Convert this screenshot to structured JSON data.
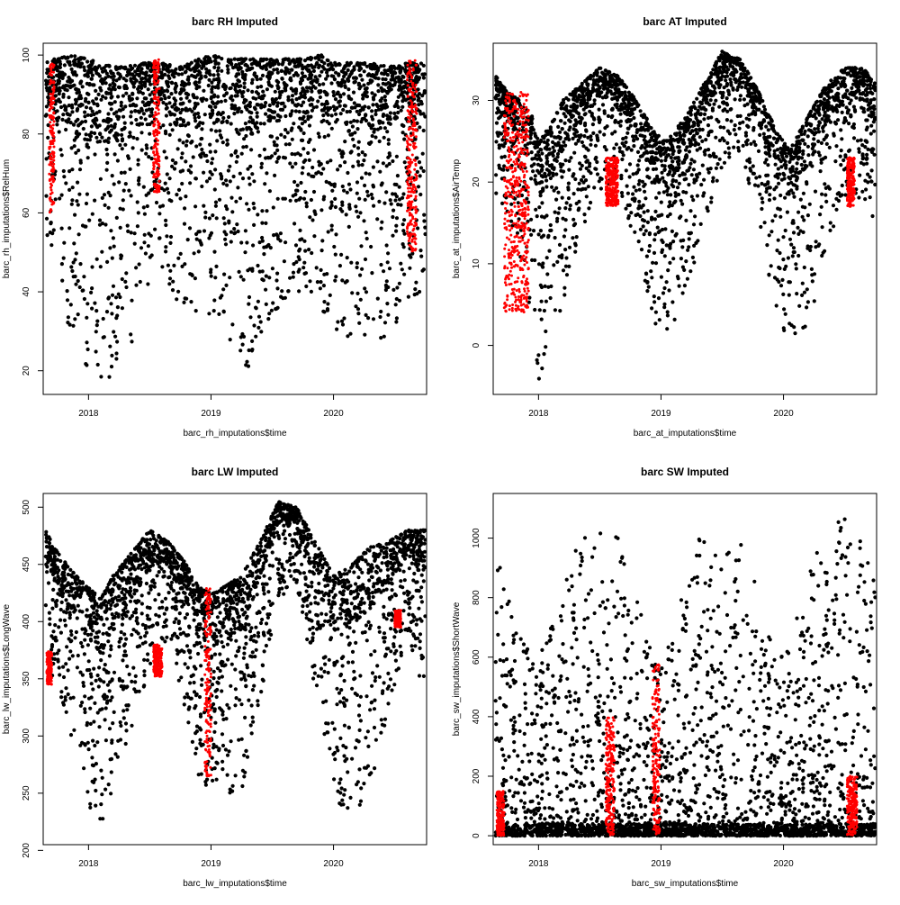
{
  "colors": {
    "observed": "#000000",
    "imputed": "#ff0000",
    "axis": "#000000",
    "background": "#ffffff"
  },
  "chart_data": [
    {
      "type": "scatter",
      "title": "barc RH Imputed",
      "xlabel": "barc_rh_imputations$time",
      "ylabel": "barc_rh_imputations$RelHum",
      "xlim": [
        2017.63,
        2020.76
      ],
      "ylim": [
        14,
        103
      ],
      "x_ticks": [
        2018,
        2019,
        2020
      ],
      "x_tick_labels": [
        "2018",
        "2019",
        "2020"
      ],
      "y_ticks": [
        20,
        40,
        60,
        80,
        100
      ],
      "y_tick_labels": [
        "20",
        "40",
        "60",
        "80",
        "100"
      ],
      "grid": false,
      "legend": "none",
      "series": [
        {
          "role": "observed",
          "color": "#000000",
          "x_range": [
            2017.65,
            2020.75
          ],
          "envelope": {
            "x": [
              2017.65,
              2017.75,
              2017.85,
              2018.0,
              2018.1,
              2018.2,
              2018.3,
              2018.45,
              2018.6,
              2018.75,
              2018.9,
              2019.0,
              2019.15,
              2019.3,
              2019.45,
              2019.6,
              2019.75,
              2019.9,
              2020.0,
              2020.15,
              2020.3,
              2020.45,
              2020.6,
              2020.75
            ],
            "lo": [
              55,
              40,
              30,
              20,
              16,
              18,
              20,
              40,
              46,
              35,
              30,
              32,
              28,
              20,
              32,
              38,
              40,
              36,
              30,
              24,
              28,
              27,
              38,
              40
            ],
            "hi": [
              99,
              99,
              100,
              99,
              98,
              97,
              97,
              98,
              98,
              97,
              99,
              100,
              99,
              99,
              99,
              99,
              99,
              100,
              98,
              98,
              98,
              97,
              98,
              98
            ]
          }
        },
        {
          "role": "imputed",
          "color": "#ff0000",
          "blocks": [
            {
              "x": [
                2017.68,
                2017.72
              ],
              "y": [
                60,
                98
              ]
            },
            {
              "x": [
                2018.53,
                2018.58
              ],
              "y": [
                65,
                99
              ]
            },
            {
              "x": [
                2020.6,
                2020.68
              ],
              "y": [
                50,
                99
              ]
            }
          ]
        }
      ]
    },
    {
      "type": "scatter",
      "title": "barc AT Imputed",
      "xlabel": "barc_at_imputations$time",
      "ylabel": "barc_at_imputations$AirTemp",
      "xlim": [
        2017.63,
        2020.76
      ],
      "ylim": [
        -6,
        37
      ],
      "x_ticks": [
        2018,
        2019,
        2020
      ],
      "x_tick_labels": [
        "2018",
        "2019",
        "2020"
      ],
      "y_ticks": [
        0,
        10,
        20,
        30
      ],
      "y_tick_labels": [
        "0",
        "10",
        "20",
        "30"
      ],
      "grid": false,
      "legend": "none",
      "series": [
        {
          "role": "observed",
          "color": "#000000",
          "x_range": [
            2017.65,
            2020.75
          ],
          "envelope": {
            "x": [
              2017.65,
              2017.75,
              2017.85,
              2017.95,
              2018.0,
              2018.1,
              2018.2,
              2018.35,
              2018.5,
              2018.65,
              2018.8,
              2018.95,
              2019.05,
              2019.2,
              2019.35,
              2019.5,
              2019.65,
              2019.8,
              2019.95,
              2020.05,
              2020.2,
              2020.35,
              2020.5,
              2020.65,
              2020.75
            ],
            "lo": [
              18,
              16,
              10,
              2,
              -5,
              0,
              5,
              14,
              19,
              20,
              12,
              2,
              0,
              6,
              14,
              22,
              24,
              14,
              4,
              0,
              2,
              12,
              18,
              18,
              15
            ],
            "hi": [
              33,
              31,
              30,
              28,
              25,
              27,
              30,
              32,
              34,
              33,
              30,
              26,
              25,
              28,
              32,
              36,
              35,
              31,
              26,
              24,
              28,
              32,
              34,
              34,
              32
            ]
          }
        },
        {
          "role": "imputed",
          "color": "#ff0000",
          "blocks": [
            {
              "x": [
                2017.72,
                2017.92
              ],
              "y": [
                4,
                31
              ]
            },
            {
              "x": [
                2018.55,
                2018.65
              ],
              "y": [
                17,
                23
              ]
            },
            {
              "x": [
                2020.52,
                2020.58
              ],
              "y": [
                17,
                23
              ]
            }
          ]
        }
      ]
    },
    {
      "type": "scatter",
      "title": "barc LW Imputed",
      "xlabel": "barc_lw_imputations$time",
      "ylabel": "barc_lw_imputations$LongWave",
      "xlim": [
        2017.63,
        2020.76
      ],
      "ylim": [
        205,
        512
      ],
      "x_ticks": [
        2018,
        2019,
        2020
      ],
      "x_tick_labels": [
        "2018",
        "2019",
        "2020"
      ],
      "y_ticks": [
        200,
        250,
        300,
        350,
        400,
        450,
        500
      ],
      "y_tick_labels": [
        "200",
        "250",
        "300",
        "350",
        "400",
        "450",
        "500"
      ],
      "grid": false,
      "legend": "none",
      "series": [
        {
          "role": "observed",
          "color": "#000000",
          "x_range": [
            2017.65,
            2020.75
          ],
          "envelope": {
            "x": [
              2017.65,
              2017.75,
              2017.9,
              2018.0,
              2018.1,
              2018.2,
              2018.35,
              2018.5,
              2018.65,
              2018.8,
              2018.9,
              2019.0,
              2019.1,
              2019.25,
              2019.4,
              2019.55,
              2019.7,
              2019.85,
              2020.0,
              2020.15,
              2020.3,
              2020.45,
              2020.6,
              2020.75
            ],
            "lo": [
              360,
              340,
              270,
              240,
              215,
              250,
              300,
              350,
              380,
              320,
              260,
              250,
              240,
              250,
              330,
              420,
              430,
              330,
              240,
              228,
              250,
              320,
              390,
              320
            ],
            "hi": [
              480,
              460,
              440,
              430,
              420,
              440,
              460,
              480,
              470,
              450,
              430,
              425,
              430,
              440,
              470,
              505,
              500,
              470,
              440,
              450,
              465,
              470,
              480,
              480
            ]
          }
        },
        {
          "role": "imputed",
          "color": "#ff0000",
          "blocks": [
            {
              "x": [
                2017.66,
                2017.7
              ],
              "y": [
                345,
                375
              ]
            },
            {
              "x": [
                2018.53,
                2018.6
              ],
              "y": [
                352,
                380
              ]
            },
            {
              "x": [
                2018.95,
                2019.0
              ],
              "y": [
                265,
                430
              ]
            },
            {
              "x": [
                2020.5,
                2020.55
              ],
              "y": [
                395,
                410
              ]
            }
          ]
        }
      ]
    },
    {
      "type": "scatter",
      "title": "barc SW Imputed",
      "xlabel": "barc_sw_imputations$time",
      "ylabel": "barc_sw_imputations$ShortWave",
      "xlim": [
        2017.63,
        2020.76
      ],
      "ylim": [
        -30,
        1150
      ],
      "x_ticks": [
        2018,
        2019,
        2020
      ],
      "x_tick_labels": [
        "2018",
        "2019",
        "2020"
      ],
      "y_ticks": [
        0,
        200,
        400,
        600,
        800,
        1000
      ],
      "y_tick_labels": [
        "0",
        "200",
        "400",
        "600",
        "800",
        "1000"
      ],
      "grid": false,
      "legend": "none",
      "series": [
        {
          "role": "observed",
          "color": "#000000",
          "x_range": [
            2017.65,
            2020.75
          ],
          "envelope": {
            "x": [
              2017.65,
              2017.8,
              2017.95,
              2018.05,
              2018.2,
              2018.35,
              2018.5,
              2018.65,
              2018.8,
              2018.95,
              2019.05,
              2019.2,
              2019.35,
              2019.5,
              2019.65,
              2019.8,
              2019.95,
              2020.05,
              2020.2,
              2020.35,
              2020.5,
              2020.65,
              2020.75
            ],
            "lo": [
              0,
              0,
              0,
              0,
              0,
              0,
              0,
              0,
              0,
              0,
              0,
              0,
              0,
              0,
              0,
              0,
              0,
              0,
              0,
              0,
              0,
              0,
              0
            ],
            "hi": [
              970,
              760,
              600,
              640,
              850,
              1010,
              1050,
              1000,
              800,
              600,
              640,
              860,
              1050,
              1120,
              1020,
              800,
              600,
              640,
              900,
              1050,
              1080,
              1000,
              920
            ]
          }
        },
        {
          "role": "imputed",
          "color": "#ff0000",
          "blocks": [
            {
              "x": [
                2017.66,
                2017.72
              ],
              "y": [
                0,
                150
              ]
            },
            {
              "x": [
                2018.55,
                2018.62
              ],
              "y": [
                0,
                400
              ]
            },
            {
              "x": [
                2018.93,
                2018.99
              ],
              "y": [
                0,
                580
              ]
            },
            {
              "x": [
                2020.52,
                2020.6
              ],
              "y": [
                0,
                200
              ]
            }
          ]
        }
      ]
    }
  ]
}
